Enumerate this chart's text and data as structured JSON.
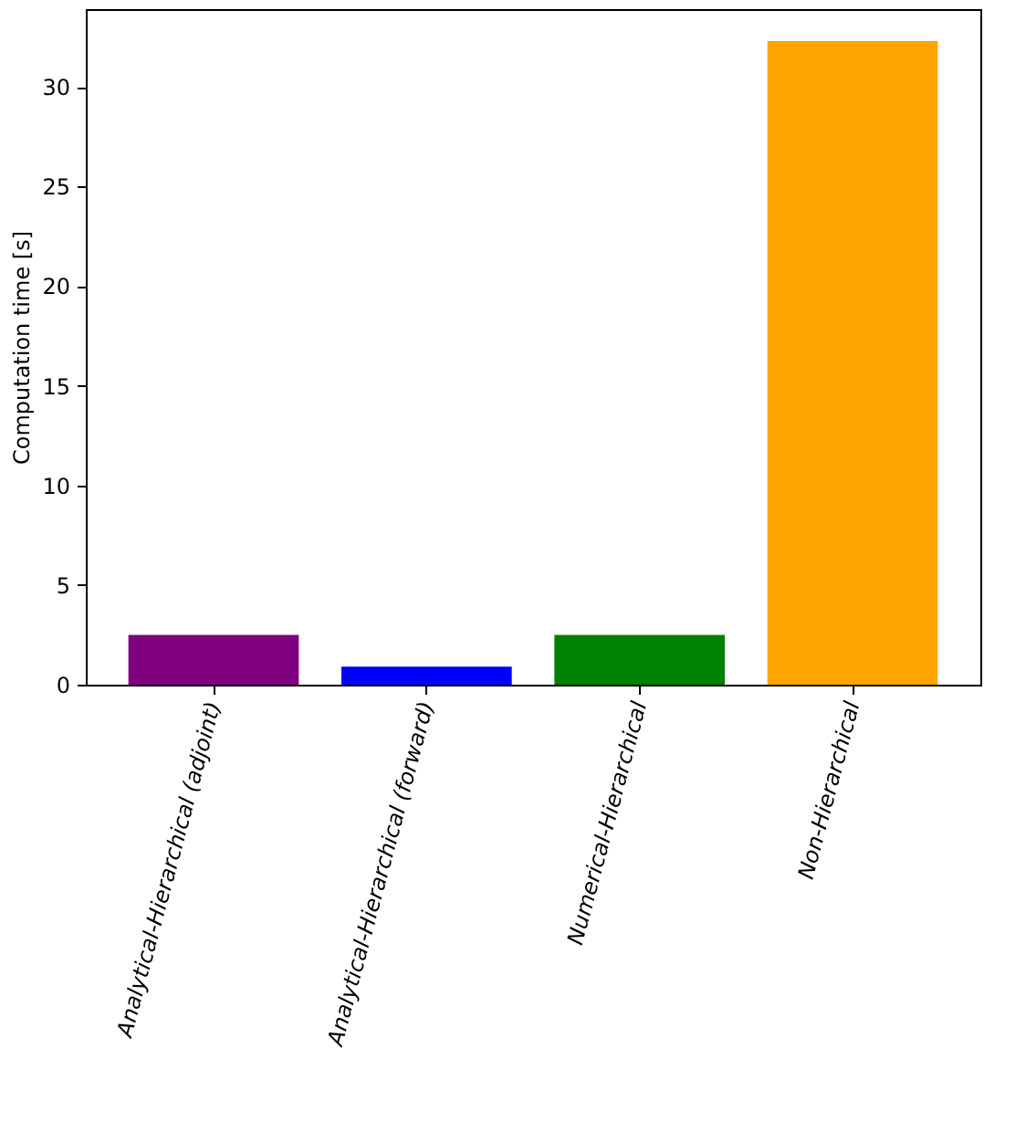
{
  "chart_data": {
    "type": "bar",
    "ylabel": "Computation time [s]",
    "categories": [
      "Analytical-Hierarchical (adjoint)",
      "Analytical-Hierarchical (forward)",
      "Numerical-Hierarchical",
      "Non-Hierarchical"
    ],
    "values": [
      2.5,
      0.9,
      2.5,
      32.3
    ],
    "colors": [
      "#800080",
      "#0000ff",
      "#008000",
      "#ffa500"
    ],
    "ylim": [
      0,
      33.9
    ],
    "yticks": [
      0,
      5,
      10,
      15,
      20,
      25,
      30
    ],
    "grid": false
  }
}
